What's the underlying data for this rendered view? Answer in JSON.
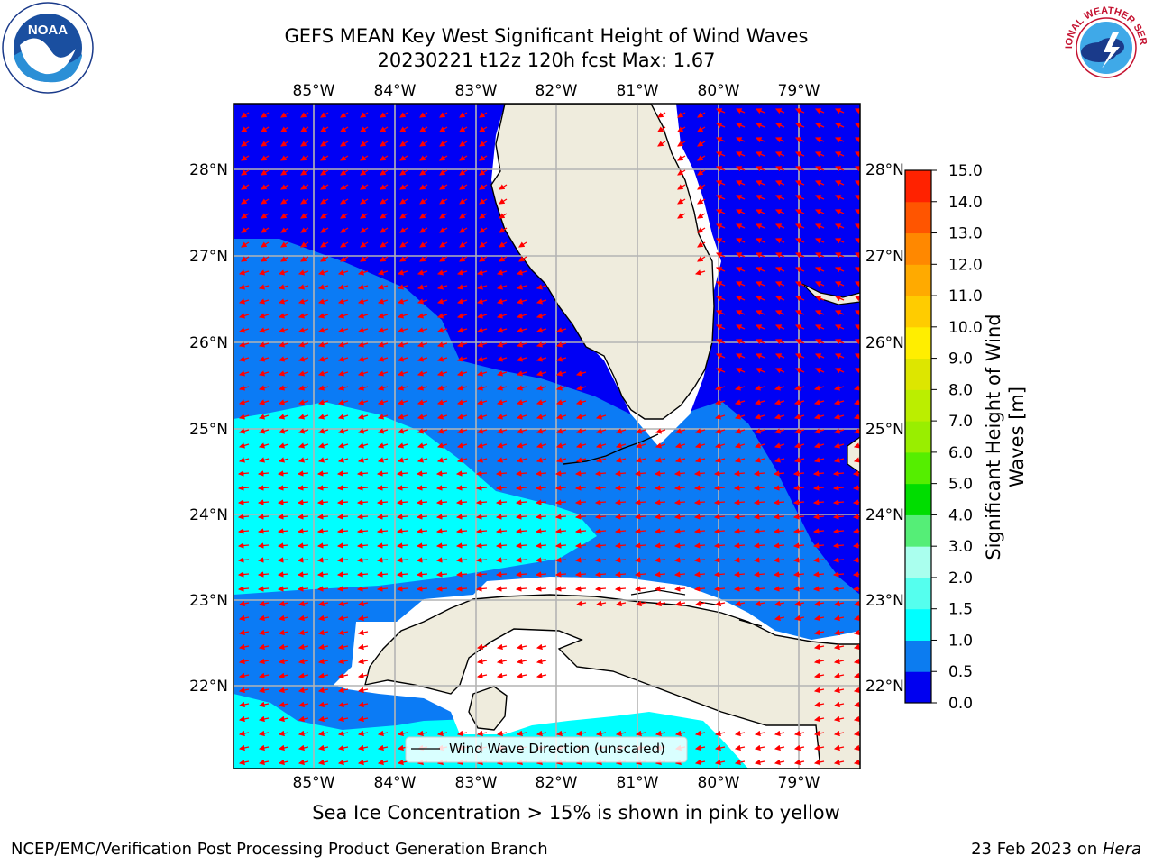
{
  "title": {
    "line1": "GEFS MEAN Key West Significant Height of Wind Waves",
    "line2": "20230221 t12z 120h fcst   Max: 1.67"
  },
  "map": {
    "lon_ticks": [
      "85°W",
      "84°W",
      "83°W",
      "82°W",
      "81°W",
      "80°W",
      "79°W"
    ],
    "lat_ticks": [
      "28°N",
      "27°N",
      "26°N",
      "25°N",
      "24°N",
      "23°N",
      "22°N"
    ],
    "legend_label": "Wind Wave Direction (unscaled)",
    "colors": {
      "land": "#efecdd",
      "band_0_0.5": "#0000f5",
      "band_0.5_1.0": "#0b7bf5",
      "band_1.0_1.5": "#00ffff",
      "grid": "#b4b4b4",
      "arrow": "#ff0000"
    }
  },
  "colorbar": {
    "label_line1": "Significant Height of Wind",
    "label_line2": "Waves [m]",
    "ticks": [
      "15.0",
      "14.0",
      "13.0",
      "12.0",
      "11.0",
      "10.0",
      "9.0",
      "8.0",
      "7.0",
      "6.0",
      "5.0",
      "4.0",
      "3.0",
      "2.0",
      "1.5",
      "1.0",
      "0.5",
      "0.0"
    ],
    "colors": [
      "#0000f0",
      "#0c7cf0",
      "#00ffff",
      "#55ffee",
      "#aaffee",
      "#55ee77",
      "#00dd00",
      "#55ee00",
      "#99ee00",
      "#bbee00",
      "#dde600",
      "#ffee00",
      "#ffcc00",
      "#ffaa00",
      "#ff8800",
      "#ff5500",
      "#ff2200"
    ]
  },
  "footnote": "Sea Ice Concentration > 15% is shown in pink to yellow",
  "footer": {
    "left": "NCEP/EMC/Verification Post Processing Product Generation Branch",
    "right_date": "23 Feb 2023 on ",
    "right_host": "Hera"
  },
  "logos": {
    "noaa": "NOAA",
    "nws": "NATIONAL WEATHER SERVICE"
  }
}
